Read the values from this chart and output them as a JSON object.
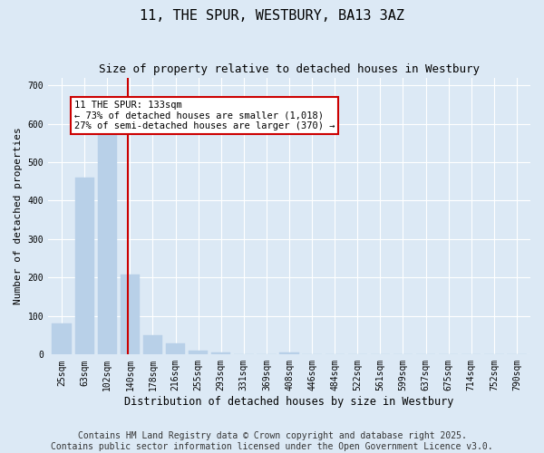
{
  "title": "11, THE SPUR, WESTBURY, BA13 3AZ",
  "subtitle": "Size of property relative to detached houses in Westbury",
  "xlabel": "Distribution of detached houses by size in Westbury",
  "ylabel": "Number of detached properties",
  "categories": [
    "25sqm",
    "63sqm",
    "102sqm",
    "140sqm",
    "178sqm",
    "216sqm",
    "255sqm",
    "293sqm",
    "331sqm",
    "369sqm",
    "408sqm",
    "446sqm",
    "484sqm",
    "522sqm",
    "561sqm",
    "599sqm",
    "637sqm",
    "675sqm",
    "714sqm",
    "752sqm",
    "790sqm"
  ],
  "values": [
    80,
    460,
    570,
    207,
    50,
    30,
    10,
    5,
    0,
    0,
    5,
    0,
    0,
    0,
    0,
    0,
    0,
    0,
    0,
    0,
    0
  ],
  "bar_color": "#b8d0e8",
  "bar_edge_color": "#b8d0e8",
  "vline_color": "#cc0000",
  "annotation_text": "11 THE SPUR: 133sqm\n← 73% of detached houses are smaller (1,018)\n27% of semi-detached houses are larger (370) →",
  "annotation_box_edgecolor": "#cc0000",
  "ylim": [
    0,
    720
  ],
  "yticks": [
    0,
    100,
    200,
    300,
    400,
    500,
    600,
    700
  ],
  "background_color": "#dce9f5",
  "footer": "Contains HM Land Registry data © Crown copyright and database right 2025.\nContains public sector information licensed under the Open Government Licence v3.0.",
  "title_fontsize": 11,
  "subtitle_fontsize": 9,
  "xlabel_fontsize": 8.5,
  "ylabel_fontsize": 8,
  "tick_fontsize": 7,
  "footer_fontsize": 7,
  "annotation_fontsize": 7.5
}
